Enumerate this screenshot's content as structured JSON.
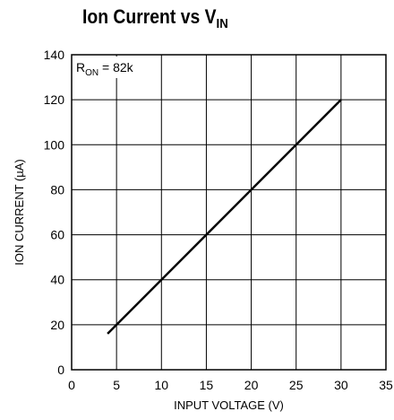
{
  "chart_data": {
    "type": "line",
    "title": "Ion Current vs V",
    "title_subscript": "IN",
    "xlabel": "INPUT VOLTAGE (V)",
    "ylabel": "ION CURRENT (µA)",
    "xlim": [
      0,
      35
    ],
    "ylim": [
      0,
      140
    ],
    "xticks": [
      "0",
      "5",
      "10",
      "15",
      "20",
      "25",
      "30",
      "35"
    ],
    "yticks": [
      "0",
      "20",
      "40",
      "60",
      "80",
      "100",
      "120",
      "140"
    ],
    "grid": true,
    "annotation": {
      "main": "R",
      "sub": "ON",
      "rest": " = 82k"
    },
    "series": [
      {
        "x": [
          4,
          30
        ],
        "y": [
          16,
          120
        ],
        "color": "#000000"
      }
    ]
  }
}
